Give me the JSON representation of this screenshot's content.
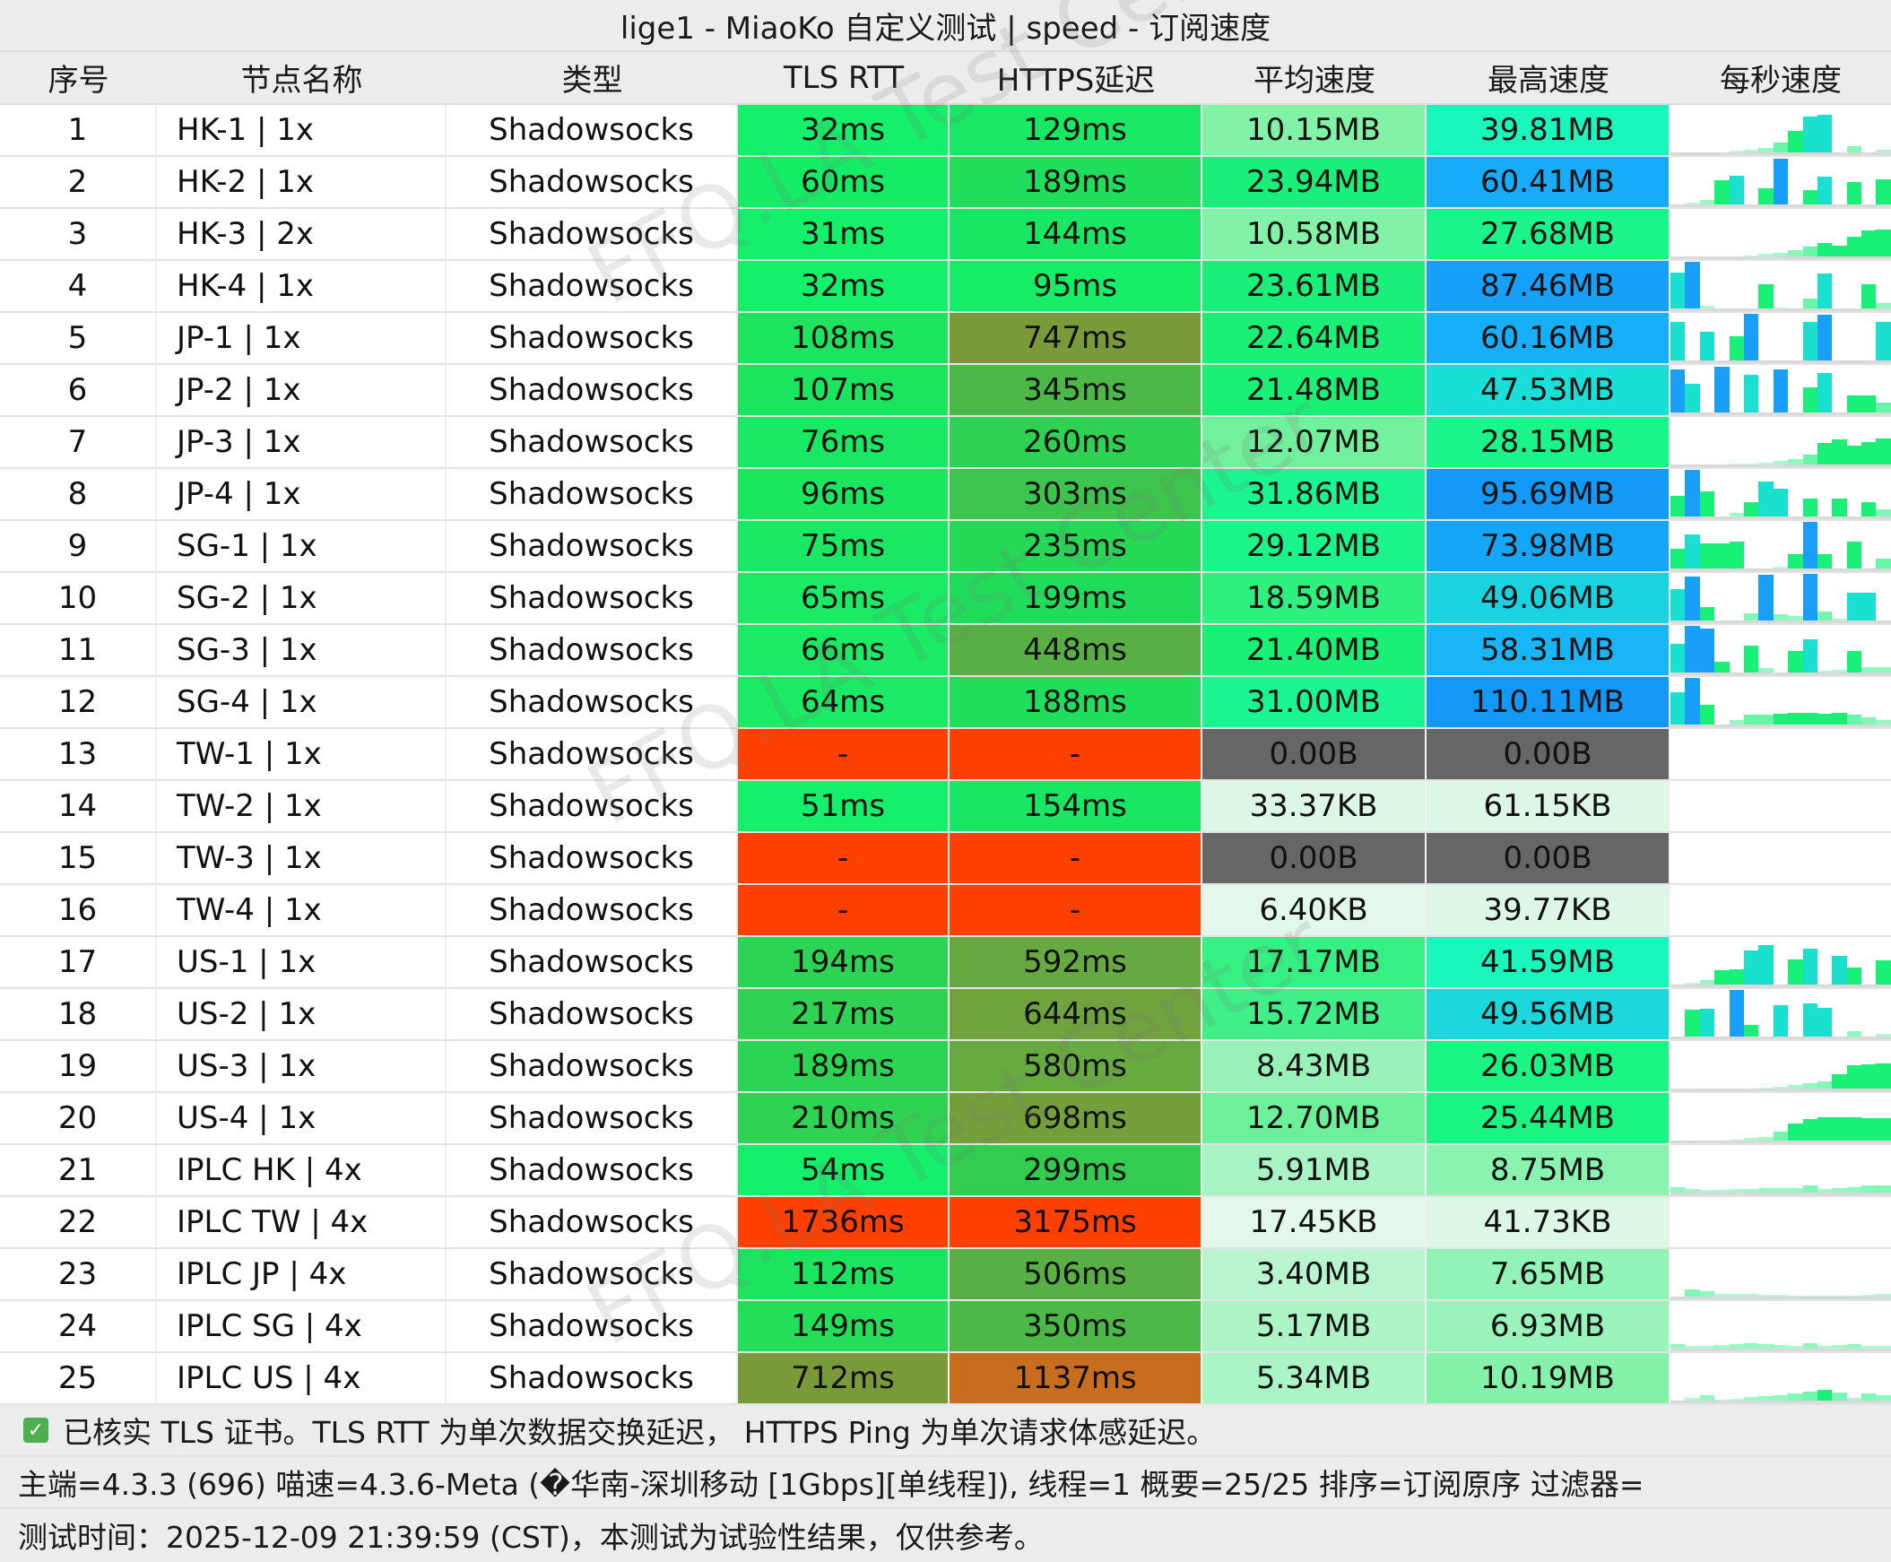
{
  "window": {
    "title": "lige1 - MiaoKo 自定义测试 | speed - 订阅速度"
  },
  "table": {
    "headers": {
      "index": "序号",
      "name": "节点名称",
      "type": "类型",
      "tls_rtt": "TLS RTT",
      "https_delay": "HTTPS延迟",
      "avg_speed": "平均速度",
      "max_speed": "最高速度",
      "per_second": "每秒速度"
    },
    "rows": [
      {
        "index": "1",
        "name": "HK-1 | 1x",
        "type": "Shadowsocks",
        "tls": "32ms",
        "https": "129ms",
        "avg": "10.15MB",
        "max": "39.81MB",
        "tls_color": "#14f06a",
        "https_color": "#18e864",
        "avg_color": "#82f2a6",
        "max_color": "#1af7bc",
        "spark": [
          0,
          0,
          0,
          0,
          0.03,
          0.06,
          0.1,
          0.2,
          0.45,
          0.75,
          0.77,
          0,
          0.13,
          0,
          0.05
        ]
      },
      {
        "index": "2",
        "name": "HK-2 | 1x",
        "type": "Shadowsocks",
        "tls": "60ms",
        "https": "189ms",
        "avg": "23.94MB",
        "max": "60.41MB",
        "tls_color": "#15ec66",
        "https_color": "#1fde5c",
        "avg_color": "#1aef7a",
        "max_color": "#17abfa",
        "spark": [
          0,
          0.03,
          0.1,
          0.5,
          0.6,
          0,
          0.33,
          0.95,
          0,
          0.3,
          0.58,
          0,
          0.47,
          0,
          0.52
        ]
      },
      {
        "index": "3",
        "name": "HK-3 | 2x",
        "type": "Shadowsocks",
        "tls": "31ms",
        "https": "144ms",
        "avg": "10.58MB",
        "max": "27.68MB",
        "tls_color": "#14f06a",
        "https_color": "#19e662",
        "avg_color": "#82f2a6",
        "max_color": "#1af48a",
        "spark": [
          0,
          0,
          0,
          0,
          0,
          0.02,
          0.05,
          0.08,
          0.13,
          0.2,
          0.27,
          0.22,
          0.4,
          0.53,
          0.55
        ]
      },
      {
        "index": "4",
        "name": "HK-4 | 1x",
        "type": "Shadowsocks",
        "tls": "32ms",
        "https": "95ms",
        "avg": "23.61MB",
        "max": "87.46MB",
        "tls_color": "#14f06a",
        "https_color": "#16ed66",
        "avg_color": "#1aef7a",
        "max_color": "#16a0f8",
        "spark": [
          0.75,
          0.97,
          0.05,
          0,
          0,
          0,
          0.5,
          0.02,
          0,
          0.2,
          0.72,
          0,
          0,
          0.5,
          0.12
        ]
      },
      {
        "index": "5",
        "name": "JP-1 | 1x",
        "type": "Shadowsocks",
        "tls": "108ms",
        "https": "747ms",
        "avg": "22.64MB",
        "max": "60.16MB",
        "tls_color": "#1de45e",
        "https_color": "#7a9a3a",
        "avg_color": "#1aef78",
        "max_color": "#17aefa",
        "spark": [
          0.8,
          0,
          0.6,
          0,
          0.5,
          0.97,
          0,
          0,
          0,
          0.8,
          0.95,
          0,
          0,
          0,
          0.8
        ]
      },
      {
        "index": "6",
        "name": "JP-2 | 1x",
        "type": "Shadowsocks",
        "tls": "107ms",
        "https": "345ms",
        "avg": "21.48MB",
        "max": "47.53MB",
        "tls_color": "#1de45e",
        "https_color": "#4cb848",
        "avg_color": "#1aef76",
        "max_color": "#1adfd8",
        "spark": [
          0.88,
          0.6,
          0,
          0.95,
          0,
          0.78,
          0,
          0.88,
          0,
          0.52,
          0.82,
          0,
          0.35,
          0.36,
          0.2
        ]
      },
      {
        "index": "7",
        "name": "JP-3 | 1x",
        "type": "Shadowsocks",
        "tls": "76ms",
        "https": "260ms",
        "avg": "12.07MB",
        "max": "28.15MB",
        "tls_color": "#19e862",
        "https_color": "#2ed152",
        "avg_color": "#72f09c",
        "max_color": "#1af48a",
        "spark": [
          0,
          0,
          0,
          0,
          0.01,
          0.02,
          0.04,
          0.07,
          0.12,
          0.2,
          0.45,
          0.52,
          0.38,
          0.46,
          0.54
        ]
      },
      {
        "index": "8",
        "name": "JP-4 | 1x",
        "type": "Shadowsocks",
        "tls": "96ms",
        "https": "303ms",
        "avg": "31.86MB",
        "max": "95.69MB",
        "tls_color": "#1be660",
        "https_color": "#3dc44c",
        "avg_color": "#1af590",
        "max_color": "#1399f7",
        "spark": [
          0.42,
          0.97,
          0.52,
          0,
          0.08,
          0.3,
          0.72,
          0.58,
          0,
          0.37,
          0,
          0.37,
          0,
          0.3,
          0.15
        ]
      },
      {
        "index": "9",
        "name": "SG-1 | 1x",
        "type": "Shadowsocks",
        "tls": "75ms",
        "https": "235ms",
        "avg": "29.12MB",
        "max": "73.98MB",
        "tls_color": "#19e862",
        "https_color": "#27d756",
        "avg_color": "#1af48a",
        "max_color": "#16a6f8",
        "spark": [
          0.4,
          0.7,
          0.52,
          0.52,
          0.55,
          0,
          0,
          0.03,
          0.3,
          0.97,
          0.3,
          0,
          0.55,
          0,
          0.2
        ]
      },
      {
        "index": "10",
        "name": "SG-2 | 1x",
        "type": "Shadowsocks",
        "tls": "65ms",
        "https": "199ms",
        "avg": "18.59MB",
        "max": "49.06MB",
        "tls_color": "#1aea64",
        "https_color": "#21dc5a",
        "avg_color": "#2ef07e",
        "max_color": "#1ad3e0",
        "spark": [
          0.65,
          0.9,
          0.28,
          0,
          0,
          0.15,
          0.95,
          0.13,
          0.1,
          0.97,
          0.18,
          0.04,
          0.57,
          0.58,
          0
        ]
      },
      {
        "index": "11",
        "name": "SG-3 | 1x",
        "type": "Shadowsocks",
        "tls": "66ms",
        "https": "448ms",
        "avg": "21.40MB",
        "max": "58.31MB",
        "tls_color": "#1aea64",
        "https_color": "#58b044",
        "avg_color": "#1aef76",
        "max_color": "#18b6f6",
        "spark": [
          0.6,
          0.97,
          0.9,
          0.22,
          0,
          0.55,
          0.1,
          0,
          0.45,
          0.68,
          0.03,
          0.05,
          0.44,
          0.12,
          0.12
        ]
      },
      {
        "index": "12",
        "name": "SG-4 | 1x",
        "type": "Shadowsocks",
        "tls": "64ms",
        "https": "188ms",
        "avg": "31.00MB",
        "max": "110.11MB",
        "tls_color": "#1aea64",
        "https_color": "#1fde5c",
        "avg_color": "#1af592",
        "max_color": "#1498f7",
        "spark": [
          0.66,
          0.97,
          0.4,
          0,
          0.1,
          0.2,
          0.2,
          0.22,
          0.24,
          0.25,
          0.23,
          0.25,
          0.2,
          0.15,
          0.1
        ]
      },
      {
        "index": "13",
        "name": "TW-1 | 1x",
        "type": "Shadowsocks",
        "tls": "-",
        "https": "-",
        "avg": "0.00B",
        "max": "0.00B",
        "tls_color": "#ff4000",
        "https_color": "#ff4000",
        "avg_color": "#666666",
        "max_color": "#666666",
        "spark": []
      },
      {
        "index": "14",
        "name": "TW-2 | 1x",
        "type": "Shadowsocks",
        "tls": "51ms",
        "https": "154ms",
        "avg": "33.37KB",
        "max": "61.15KB",
        "tls_color": "#14f06a",
        "https_color": "#19e662",
        "avg_color": "#dcf7e6",
        "max_color": "#dcf7e6",
        "spark": []
      },
      {
        "index": "15",
        "name": "TW-3 | 1x",
        "type": "Shadowsocks",
        "tls": "-",
        "https": "-",
        "avg": "0.00B",
        "max": "0.00B",
        "tls_color": "#ff4000",
        "https_color": "#ff4000",
        "avg_color": "#666666",
        "max_color": "#666666",
        "spark": []
      },
      {
        "index": "16",
        "name": "TW-4 | 1x",
        "type": "Shadowsocks",
        "tls": "-",
        "https": "-",
        "avg": "6.40KB",
        "max": "39.77KB",
        "tls_color": "#ff4000",
        "https_color": "#ff4000",
        "avg_color": "#e2f8ea",
        "max_color": "#dcf7e6",
        "spark": []
      },
      {
        "index": "17",
        "name": "US-1 | 1x",
        "type": "Shadowsocks",
        "tls": "194ms",
        "https": "592ms",
        "avg": "17.17MB",
        "max": "41.59MB",
        "tls_color": "#2cd454",
        "https_color": "#68a840",
        "avg_color": "#35f082",
        "max_color": "#1af7bc",
        "spark": [
          0,
          0.03,
          0.1,
          0.3,
          0.32,
          0.7,
          0.82,
          0,
          0.52,
          0.75,
          0,
          0.6,
          0.35,
          0,
          0.5
        ]
      },
      {
        "index": "18",
        "name": "US-2 | 1x",
        "type": "Shadowsocks",
        "tls": "217ms",
        "https": "644ms",
        "avg": "15.72MB",
        "max": "49.56MB",
        "tls_color": "#2fd252",
        "https_color": "#70a23e",
        "avg_color": "#40ef88",
        "max_color": "#1ad8dc",
        "spark": [
          0,
          0.55,
          0.58,
          0,
          0.97,
          0.25,
          0,
          0.65,
          0,
          0.68,
          0.6,
          0,
          0.12,
          0,
          0.05
        ]
      },
      {
        "index": "19",
        "name": "US-3 | 1x",
        "type": "Shadowsocks",
        "tls": "189ms",
        "https": "580ms",
        "avg": "8.43MB",
        "max": "26.03MB",
        "tls_color": "#2cd454",
        "https_color": "#66aa40",
        "avg_color": "#98f2b8",
        "max_color": "#1af482",
        "spark": [
          0,
          0,
          0,
          0,
          0,
          0,
          0.01,
          0.04,
          0.08,
          0.12,
          0.14,
          0.3,
          0.48,
          0.5,
          0.52
        ]
      },
      {
        "index": "20",
        "name": "US-4 | 1x",
        "type": "Shadowsocks",
        "tls": "210ms",
        "https": "698ms",
        "avg": "12.70MB",
        "max": "25.44MB",
        "tls_color": "#2fd252",
        "https_color": "#74a03c",
        "avg_color": "#6df09a",
        "max_color": "#1af482",
        "spark": [
          0,
          0,
          0,
          0,
          0.02,
          0.05,
          0.08,
          0.18,
          0.35,
          0.45,
          0.48,
          0.49,
          0.48,
          0.47,
          0.47
        ]
      },
      {
        "index": "21",
        "name": "IPLC HK | 4x",
        "type": "Shadowsocks",
        "tls": "54ms",
        "https": "299ms",
        "avg": "5.91MB",
        "max": "8.75MB",
        "tls_color": "#14f06a",
        "https_color": "#32cc50",
        "avg_color": "#a8f3c4",
        "max_color": "#8af3b0",
        "spark": [
          0.12,
          0.08,
          0.05,
          0.05,
          0.07,
          0.08,
          0.1,
          0.1,
          0.1,
          0.15,
          0.08,
          0.1,
          0.12,
          0.14,
          0.15
        ]
      },
      {
        "index": "22",
        "name": "IPLC TW | 4x",
        "type": "Shadowsocks",
        "tls": "1736ms",
        "https": "3175ms",
        "avg": "17.45KB",
        "max": "41.73KB",
        "tls_color": "#ff4000",
        "https_color": "#ff4000",
        "avg_color": "#e2f8ea",
        "max_color": "#dcf7e6",
        "spark": []
      },
      {
        "index": "23",
        "name": "IPLC JP | 4x",
        "type": "Shadowsocks",
        "tls": "112ms",
        "https": "506ms",
        "avg": "3.40MB",
        "max": "7.65MB",
        "tls_color": "#1de45e",
        "https_color": "#58b044",
        "avg_color": "#b8f5cf",
        "max_color": "#92f3b6",
        "spark": [
          0,
          0.15,
          0.12,
          0.05,
          0.05,
          0.05,
          0.04,
          0.03,
          0.02,
          0.02,
          0.02,
          0.02,
          0.02,
          0.03,
          0.05
        ]
      },
      {
        "index": "24",
        "name": "IPLC SG | 4x",
        "type": "Shadowsocks",
        "tls": "149ms",
        "https": "350ms",
        "avg": "5.17MB",
        "max": "6.93MB",
        "tls_color": "#22de58",
        "https_color": "#4cb848",
        "avg_color": "#acf4c6",
        "max_color": "#98f4ba",
        "spark": [
          0.1,
          0.05,
          0.05,
          0.08,
          0.1,
          0.12,
          0.1,
          0.08,
          0.05,
          0.12,
          0.05,
          0.07,
          0.1,
          0.06,
          0.05
        ]
      },
      {
        "index": "25",
        "name": "IPLC US | 4x",
        "type": "Shadowsocks",
        "tls": "712ms",
        "https": "1137ms",
        "avg": "5.34MB",
        "max": "10.19MB",
        "tls_color": "#7a9a3a",
        "https_color": "#c86c1e",
        "avg_color": "#aaf4c5",
        "max_color": "#84f2aa",
        "spark": [
          0,
          0.05,
          0.12,
          0.02,
          0.03,
          0.08,
          0.1,
          0.12,
          0.15,
          0.18,
          0.22,
          0.16,
          0.05,
          0.15,
          0.12
        ]
      }
    ]
  },
  "footer": {
    "check_icon": "✓",
    "line1": "已核实 TLS 证书。TLS RTT 为单次数据交换延迟， HTTPS Ping 为单次请求体感延迟。",
    "line2": "主端=4.3.3 (696) 喵速=4.3.6-Meta (�华南-深圳移动 [1Gbps][单线程]), 线程=1 概要=25/25 排序=订阅原序 过滤器=",
    "line3": "测试时间：2025-12-09 21:39:59 (CST)，本测试为试验性结果，仅供参考。"
  },
  "watermark": "FFQ.LA Test Center",
  "colors": {
    "header_bg": "#ececec",
    "row_bg": "#ffffff",
    "fail_red": "#ff4000",
    "zero_gray": "#666666",
    "spark_green": "#18f078",
    "spark_cyan": "#1ae0d0",
    "spark_blue": "#18a0f8"
  }
}
